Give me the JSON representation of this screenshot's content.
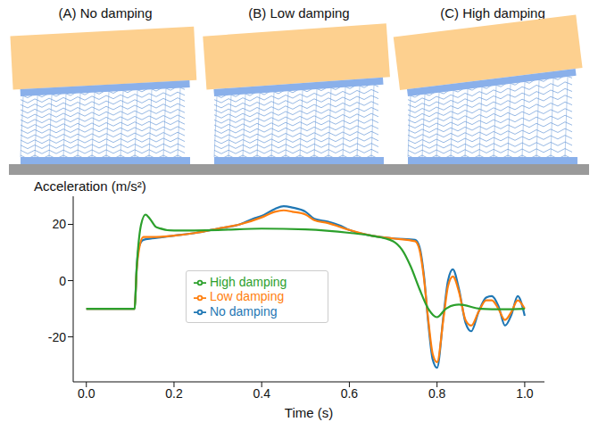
{
  "panels": [
    "(A) No damping",
    "(B) Low damping",
    "(C) High damping"
  ],
  "chart_data": {
    "type": "line",
    "x_label": "Time (s)",
    "y_label": "Acceleration (m/s²)",
    "xlim": [
      -0.03,
      1.045
    ],
    "xticks": [
      {
        "value": 0,
        "label": "0.0"
      },
      0.2,
      0.4,
      0.6,
      0.8,
      {
        "value": 1,
        "label": "1.0"
      }
    ],
    "ylim": [
      -36,
      30
    ],
    "yticks": [
      -20,
      0,
      20
    ],
    "grid": false,
    "legend": "center",
    "series": [
      {
        "name": "No damping",
        "color": "#1f77b4",
        "x": [
          0,
          0.11,
          0.115,
          0.12,
          0.13,
          0.15,
          0.2,
          0.25,
          0.3,
          0.35,
          0.38,
          0.4,
          0.43,
          0.45,
          0.47,
          0.5,
          0.52,
          0.55,
          0.58,
          0.6,
          0.65,
          0.7,
          0.75,
          0.76,
          0.77,
          0.78,
          0.79,
          0.8,
          0.815,
          0.825,
          0.836,
          0.85,
          0.865,
          0.878,
          0.895,
          0.912,
          0.925,
          0.94,
          0.955,
          0.97,
          0.984,
          1.0
        ],
        "values": [
          -10,
          -10,
          5,
          12,
          14.5,
          15,
          16,
          17,
          18.5,
          20,
          22,
          23,
          25.5,
          26.5,
          26,
          24.5,
          22,
          21,
          19.5,
          18,
          16,
          15,
          14.5,
          12,
          2,
          -15,
          -28,
          -31,
          -12,
          0,
          4,
          -3,
          -15,
          -18,
          -11,
          -6,
          -5.5,
          -9,
          -16,
          -12,
          -5.5,
          -12.5
        ]
      },
      {
        "name": "Low damping",
        "color": "#ff7f0e",
        "x": [
          0,
          0.11,
          0.115,
          0.12,
          0.13,
          0.15,
          0.2,
          0.25,
          0.3,
          0.35,
          0.4,
          0.43,
          0.45,
          0.47,
          0.5,
          0.52,
          0.55,
          0.6,
          0.65,
          0.7,
          0.75,
          0.76,
          0.77,
          0.78,
          0.79,
          0.8,
          0.815,
          0.825,
          0.836,
          0.85,
          0.865,
          0.878,
          0.895,
          0.912,
          0.925,
          0.94,
          0.955,
          0.97,
          0.984,
          1.0
        ],
        "values": [
          -10,
          -10,
          4,
          11,
          15.5,
          15.5,
          16,
          17,
          18.5,
          20,
          22.5,
          24.5,
          25,
          24.5,
          23.5,
          21.5,
          20.5,
          18,
          16,
          15,
          14,
          11,
          1,
          -14,
          -26,
          -29,
          -13,
          -2,
          1.5,
          -4,
          -14,
          -16,
          -11,
          -7,
          -7,
          -10,
          -14,
          -11,
          -7,
          -10
        ]
      },
      {
        "name": "High damping",
        "color": "#2ca02c",
        "x": [
          0,
          0.11,
          0.115,
          0.125,
          0.135,
          0.145,
          0.16,
          0.2,
          0.3,
          0.4,
          0.5,
          0.6,
          0.65,
          0.7,
          0.72,
          0.74,
          0.76,
          0.78,
          0.8,
          0.82,
          0.85,
          0.9,
          0.95,
          1.0
        ],
        "values": [
          -10,
          -10,
          5,
          20,
          23.5,
          22,
          19,
          17.8,
          18,
          18.5,
          18.2,
          17,
          16,
          14,
          11,
          5,
          -3,
          -10,
          -13,
          -10,
          -8.5,
          -10,
          -10.2,
          -10
        ]
      }
    ]
  }
}
